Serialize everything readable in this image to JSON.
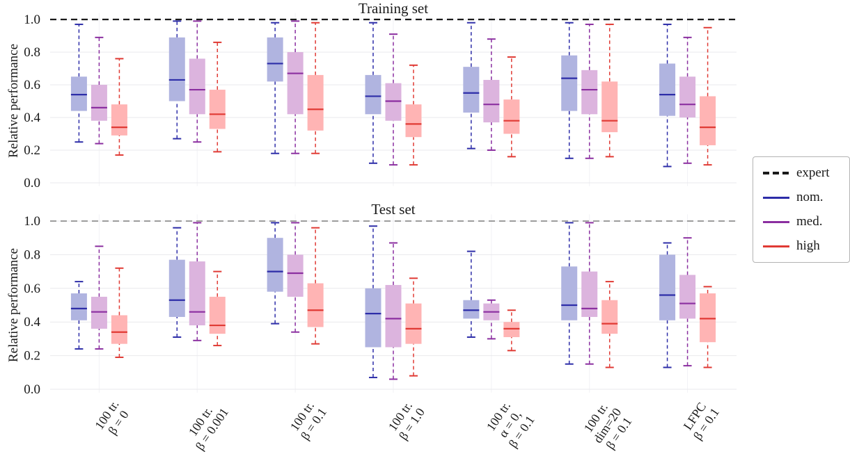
{
  "colors": {
    "nom_fill": "#b0b4e0",
    "nom_line": "#2d2da8",
    "med_fill": "#dcb4de",
    "med_line": "#8b2fa0",
    "high_fill": "#ffb4b4",
    "high_line": "#e03a34",
    "expert_train": "#1a1a1a",
    "expert_test": "#8f8f8f",
    "grid": "#e9e9ec"
  },
  "legend": {
    "entries": [
      {
        "label": "expert",
        "color": "#1a1a1a",
        "dash": true
      },
      {
        "label": "nom.",
        "color": "#2d2da8",
        "dash": false
      },
      {
        "label": "med.",
        "color": "#8b2fa0",
        "dash": false
      },
      {
        "label": "high",
        "color": "#e03a34",
        "dash": false
      }
    ]
  },
  "chart_data": [
    {
      "type": "boxplot",
      "title": "Training set",
      "ylabel": "Relative performance",
      "ylim": [
        0,
        1.05
      ],
      "yticks": [
        0.0,
        0.2,
        0.4,
        0.6,
        0.8,
        1.0
      ],
      "expert_line": 1.0,
      "categories": [
        "100 tr.\nβ = 0",
        "100 tr.\nβ = 0.001",
        "100 tr.\nβ = 0.1",
        "100 tr.\nβ = 1.0",
        "100 tr.\nα = 0,\nβ = 0.1",
        "100 tr.\ndim=20\nβ = 0.1",
        "LFPC\nβ = 0.1"
      ],
      "series": [
        {
          "name": "nom.",
          "boxes": [
            {
              "lo": 0.25,
              "q1": 0.44,
              "med": 0.54,
              "q3": 0.65,
              "hi": 0.97
            },
            {
              "lo": 0.27,
              "q1": 0.5,
              "med": 0.63,
              "q3": 0.89,
              "hi": 0.99
            },
            {
              "lo": 0.18,
              "q1": 0.62,
              "med": 0.73,
              "q3": 0.89,
              "hi": 0.98
            },
            {
              "lo": 0.12,
              "q1": 0.42,
              "med": 0.53,
              "q3": 0.66,
              "hi": 0.98
            },
            {
              "lo": 0.21,
              "q1": 0.43,
              "med": 0.55,
              "q3": 0.71,
              "hi": 0.98
            },
            {
              "lo": 0.15,
              "q1": 0.44,
              "med": 0.64,
              "q3": 0.78,
              "hi": 0.98
            },
            {
              "lo": 0.1,
              "q1": 0.41,
              "med": 0.54,
              "q3": 0.73,
              "hi": 0.97
            }
          ]
        },
        {
          "name": "med.",
          "boxes": [
            {
              "lo": 0.24,
              "q1": 0.38,
              "med": 0.46,
              "q3": 0.6,
              "hi": 0.89
            },
            {
              "lo": 0.25,
              "q1": 0.42,
              "med": 0.57,
              "q3": 0.76,
              "hi": 0.99
            },
            {
              "lo": 0.18,
              "q1": 0.42,
              "med": 0.67,
              "q3": 0.8,
              "hi": 0.99
            },
            {
              "lo": 0.11,
              "q1": 0.38,
              "med": 0.5,
              "q3": 0.61,
              "hi": 0.91
            },
            {
              "lo": 0.2,
              "q1": 0.37,
              "med": 0.48,
              "q3": 0.63,
              "hi": 0.88
            },
            {
              "lo": 0.15,
              "q1": 0.42,
              "med": 0.57,
              "q3": 0.69,
              "hi": 0.97
            },
            {
              "lo": 0.12,
              "q1": 0.4,
              "med": 0.48,
              "q3": 0.65,
              "hi": 0.89
            }
          ]
        },
        {
          "name": "high",
          "boxes": [
            {
              "lo": 0.17,
              "q1": 0.29,
              "med": 0.34,
              "q3": 0.48,
              "hi": 0.76
            },
            {
              "lo": 0.19,
              "q1": 0.33,
              "med": 0.42,
              "q3": 0.57,
              "hi": 0.86
            },
            {
              "lo": 0.18,
              "q1": 0.32,
              "med": 0.45,
              "q3": 0.66,
              "hi": 0.98
            },
            {
              "lo": 0.11,
              "q1": 0.28,
              "med": 0.36,
              "q3": 0.48,
              "hi": 0.72
            },
            {
              "lo": 0.16,
              "q1": 0.3,
              "med": 0.38,
              "q3": 0.51,
              "hi": 0.77
            },
            {
              "lo": 0.16,
              "q1": 0.31,
              "med": 0.38,
              "q3": 0.62,
              "hi": 0.97
            },
            {
              "lo": 0.11,
              "q1": 0.23,
              "med": 0.34,
              "q3": 0.53,
              "hi": 0.95
            }
          ]
        }
      ]
    },
    {
      "type": "boxplot",
      "title": "Test set",
      "ylabel": "Relative performance",
      "ylim": [
        0,
        1.05
      ],
      "yticks": [
        0.0,
        0.2,
        0.4,
        0.6,
        0.8,
        1.0
      ],
      "expert_line": 1.0,
      "categories": [
        "100 tr.\nβ = 0",
        "100 tr.\nβ = 0.001",
        "100 tr.\nβ = 0.1",
        "100 tr.\nβ = 1.0",
        "100 tr.\nα = 0,\nβ = 0.1",
        "100 tr.\ndim=20\nβ = 0.1",
        "LFPC\nβ = 0.1"
      ],
      "series": [
        {
          "name": "nom.",
          "boxes": [
            {
              "lo": 0.24,
              "q1": 0.41,
              "med": 0.48,
              "q3": 0.57,
              "hi": 0.64
            },
            {
              "lo": 0.31,
              "q1": 0.43,
              "med": 0.53,
              "q3": 0.77,
              "hi": 0.96
            },
            {
              "lo": 0.39,
              "q1": 0.58,
              "med": 0.7,
              "q3": 0.9,
              "hi": 0.99
            },
            {
              "lo": 0.07,
              "q1": 0.25,
              "med": 0.45,
              "q3": 0.6,
              "hi": 0.97
            },
            {
              "lo": 0.31,
              "q1": 0.42,
              "med": 0.47,
              "q3": 0.53,
              "hi": 0.82
            },
            {
              "lo": 0.15,
              "q1": 0.41,
              "med": 0.5,
              "q3": 0.73,
              "hi": 0.99
            },
            {
              "lo": 0.13,
              "q1": 0.41,
              "med": 0.56,
              "q3": 0.8,
              "hi": 0.87
            }
          ]
        },
        {
          "name": "med.",
          "boxes": [
            {
              "lo": 0.24,
              "q1": 0.36,
              "med": 0.46,
              "q3": 0.55,
              "hi": 0.85
            },
            {
              "lo": 0.29,
              "q1": 0.38,
              "med": 0.46,
              "q3": 0.76,
              "hi": 0.99
            },
            {
              "lo": 0.34,
              "q1": 0.55,
              "med": 0.69,
              "q3": 0.8,
              "hi": 0.99
            },
            {
              "lo": 0.06,
              "q1": 0.25,
              "med": 0.42,
              "q3": 0.62,
              "hi": 0.87
            },
            {
              "lo": 0.3,
              "q1": 0.41,
              "med": 0.46,
              "q3": 0.51,
              "hi": 0.53
            },
            {
              "lo": 0.15,
              "q1": 0.43,
              "med": 0.48,
              "q3": 0.7,
              "hi": 0.99
            },
            {
              "lo": 0.14,
              "q1": 0.42,
              "med": 0.51,
              "q3": 0.68,
              "hi": 0.9
            }
          ]
        },
        {
          "name": "high",
          "boxes": [
            {
              "lo": 0.19,
              "q1": 0.27,
              "med": 0.34,
              "q3": 0.44,
              "hi": 0.72
            },
            {
              "lo": 0.26,
              "q1": 0.33,
              "med": 0.38,
              "q3": 0.55,
              "hi": 0.7
            },
            {
              "lo": 0.27,
              "q1": 0.37,
              "med": 0.47,
              "q3": 0.63,
              "hi": 0.96
            },
            {
              "lo": 0.08,
              "q1": 0.27,
              "med": 0.36,
              "q3": 0.51,
              "hi": 0.66
            },
            {
              "lo": 0.23,
              "q1": 0.31,
              "med": 0.36,
              "q3": 0.4,
              "hi": 0.47
            },
            {
              "lo": 0.13,
              "q1": 0.33,
              "med": 0.39,
              "q3": 0.53,
              "hi": 0.64
            },
            {
              "lo": 0.13,
              "q1": 0.28,
              "med": 0.42,
              "q3": 0.57,
              "hi": 0.61
            }
          ]
        }
      ]
    }
  ]
}
